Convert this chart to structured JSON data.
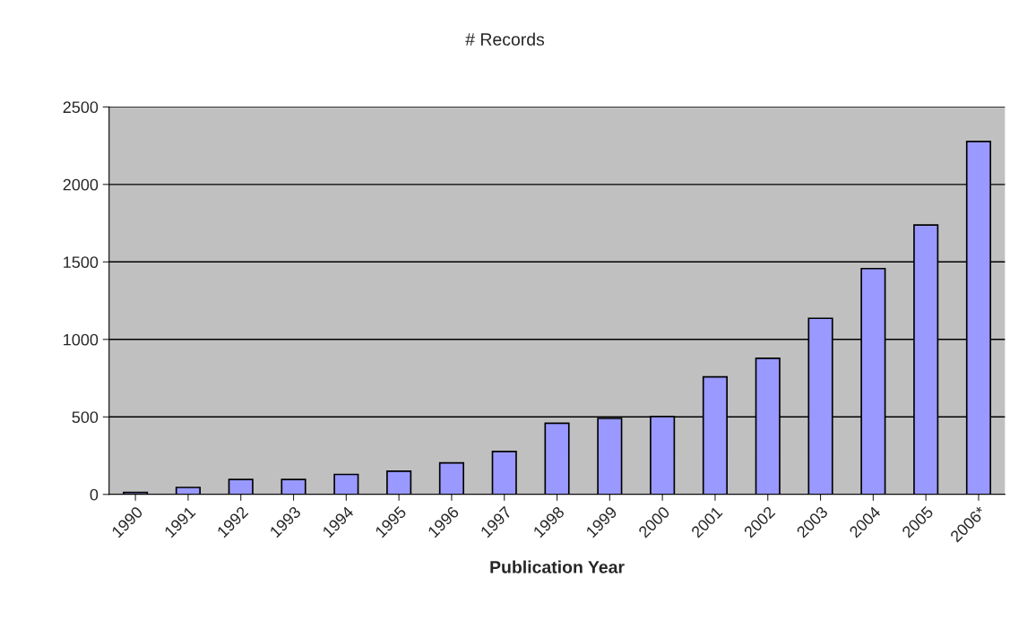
{
  "chart_data": {
    "type": "bar",
    "title": "# Records",
    "xlabel": "Publication Year",
    "categories": [
      "1990",
      "1991",
      "1992",
      "1993",
      "1994",
      "1995",
      "1996",
      "1997",
      "1998",
      "1999",
      "2000",
      "2001",
      "2002",
      "2003",
      "2004",
      "2005",
      "2006*"
    ],
    "values": [
      12,
      45,
      96,
      96,
      129,
      150,
      203,
      277,
      459,
      490,
      502,
      758,
      878,
      1136,
      1457,
      1738,
      2277
    ],
    "color": "#9999ff",
    "ylim": [
      0,
      2500
    ],
    "yticks": [
      0,
      500,
      1000,
      1500,
      2000,
      2500
    ],
    "grid": "y"
  }
}
